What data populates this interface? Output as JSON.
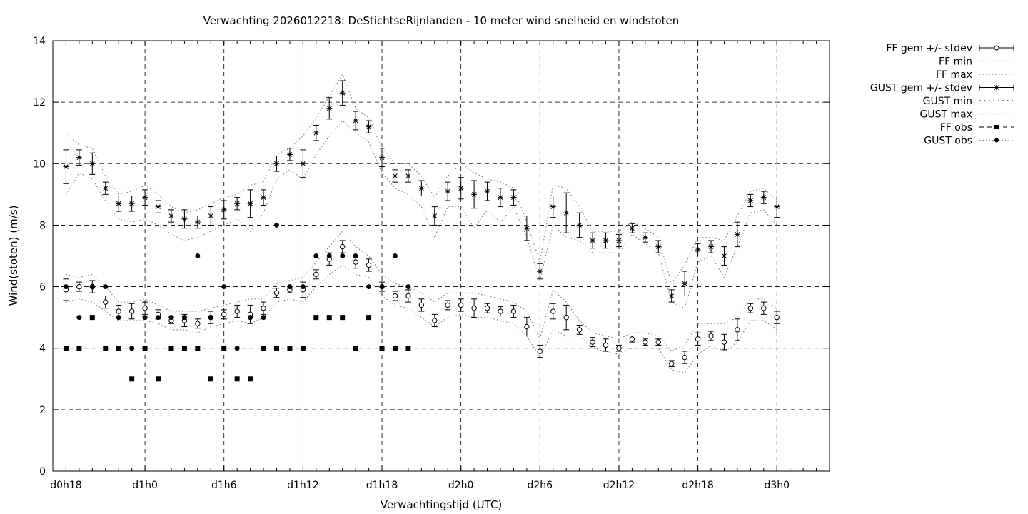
{
  "chart_data": {
    "type": "line",
    "title": "Verwachting 2026012218: DeStichtseRijnlanden - 10 meter wind snelheid en windstoten",
    "xlabel": "Verwachtingstijd (UTC)",
    "ylabel": "Wind(stoten) (m/s)",
    "ylim": [
      0,
      14
    ],
    "yticks": [
      "0",
      "2",
      "4",
      "6",
      "8",
      "10",
      "12",
      "14"
    ],
    "xlim_hours": [
      -1,
      58
    ],
    "xticks": [
      {
        "h": 0,
        "label": "d0h18"
      },
      {
        "h": 6,
        "label": "d1h0"
      },
      {
        "h": 12,
        "label": "d1h6"
      },
      {
        "h": 18,
        "label": "d1h12"
      },
      {
        "h": 24,
        "label": "d1h18"
      },
      {
        "h": 30,
        "label": "d2h0"
      },
      {
        "h": 36,
        "label": "d2h6"
      },
      {
        "h": 42,
        "label": "d2h12"
      },
      {
        "h": 48,
        "label": "d2h18"
      },
      {
        "h": 54,
        "label": "d3h0"
      }
    ],
    "grid": true,
    "legend_position": "outside-right",
    "legend": {
      "ff_gem": "FF gem +/- stdev",
      "ff_min": "FF min",
      "ff_max": "FF max",
      "gust_gem": "GUST gem +/- stdev",
      "gust_min": "GUST min",
      "gust_max": "GUST max",
      "ff_obs": "FF obs",
      "gust_obs": "GUST obs"
    },
    "series": {
      "ff_mean": [
        5.9,
        6.0,
        6.0,
        5.5,
        5.2,
        5.2,
        5.3,
        5.1,
        4.9,
        4.9,
        4.8,
        5.0,
        5.1,
        5.2,
        5.1,
        5.3,
        5.8,
        5.9,
        5.9,
        6.4,
        6.9,
        7.3,
        6.8,
        6.7,
        6.0,
        5.7,
        5.7,
        5.4,
        4.9,
        5.4,
        5.4,
        5.3,
        5.3,
        5.2,
        5.2,
        4.7,
        3.9,
        5.2,
        5.0,
        4.6,
        4.2,
        4.1,
        4.0,
        4.3,
        4.2,
        4.2,
        3.5,
        3.7,
        4.3,
        4.4,
        4.2,
        4.6,
        5.3,
        5.3,
        5.0
      ],
      "ff_stdev": [
        0.35,
        0.15,
        0.2,
        0.2,
        0.2,
        0.25,
        0.2,
        0.15,
        0.1,
        0.2,
        0.15,
        0.2,
        0.15,
        0.2,
        0.3,
        0.2,
        0.15,
        0.1,
        0.25,
        0.15,
        0.2,
        0.2,
        0.2,
        0.2,
        0.15,
        0.15,
        0.2,
        0.2,
        0.2,
        0.15,
        0.2,
        0.3,
        0.15,
        0.15,
        0.2,
        0.3,
        0.2,
        0.25,
        0.4,
        0.15,
        0.15,
        0.2,
        0.1,
        0.1,
        0.1,
        0.1,
        0.1,
        0.2,
        0.2,
        0.15,
        0.25,
        0.35,
        0.15,
        0.2,
        0.2
      ],
      "ff_min": [
        5.5,
        5.6,
        5.5,
        5.2,
        4.9,
        4.9,
        4.9,
        4.8,
        4.6,
        4.6,
        4.5,
        4.7,
        4.8,
        4.9,
        4.8,
        5.0,
        5.5,
        5.6,
        5.5,
        6.0,
        6.4,
        6.7,
        6.4,
        6.3,
        5.7,
        5.4,
        5.3,
        5.0,
        4.7,
        5.0,
        5.1,
        5.0,
        5.0,
        4.9,
        4.8,
        4.4,
        3.7,
        4.6,
        4.4,
        4.4,
        4.0,
        3.9,
        3.8,
        4.0,
        4.0,
        4.0,
        3.3,
        3.2,
        3.8,
        4.1,
        3.9,
        4.2,
        4.9,
        4.9,
        4.6
      ],
      "ff_max": [
        6.4,
        6.3,
        6.4,
        6.0,
        5.5,
        5.5,
        5.6,
        5.4,
        5.2,
        5.2,
        5.2,
        5.3,
        5.4,
        5.5,
        5.6,
        5.6,
        6.1,
        6.2,
        6.3,
        6.8,
        7.3,
        7.8,
        7.3,
        7.0,
        6.4,
        6.1,
        6.0,
        5.8,
        5.5,
        5.8,
        5.8,
        5.8,
        5.7,
        5.6,
        5.5,
        5.2,
        4.3,
        5.9,
        5.5,
        4.9,
        4.5,
        4.4,
        4.3,
        4.5,
        4.5,
        4.4,
        3.9,
        4.1,
        4.8,
        4.8,
        4.8,
        5.0,
        5.6,
        5.6,
        5.3
      ],
      "gust_mean": [
        9.9,
        10.2,
        10.0,
        9.2,
        8.7,
        8.7,
        8.9,
        8.6,
        8.3,
        8.2,
        8.1,
        8.3,
        8.5,
        8.7,
        8.7,
        8.9,
        10.0,
        10.3,
        10.0,
        11.0,
        11.8,
        12.3,
        11.4,
        11.2,
        10.2,
        9.6,
        9.6,
        9.2,
        8.3,
        9.1,
        9.2,
        9.0,
        9.1,
        8.9,
        8.9,
        7.9,
        6.5,
        8.6,
        8.4,
        8.0,
        7.5,
        7.5,
        7.5,
        7.9,
        7.6,
        7.3,
        5.7,
        6.1,
        7.2,
        7.3,
        7.0,
        7.7,
        8.8,
        8.9,
        8.6
      ],
      "gust_stdev": [
        0.55,
        0.25,
        0.35,
        0.2,
        0.25,
        0.25,
        0.25,
        0.2,
        0.2,
        0.3,
        0.2,
        0.3,
        0.3,
        0.2,
        0.45,
        0.25,
        0.25,
        0.2,
        0.45,
        0.25,
        0.35,
        0.4,
        0.3,
        0.2,
        0.3,
        0.2,
        0.2,
        0.25,
        0.3,
        0.3,
        0.35,
        0.45,
        0.3,
        0.3,
        0.25,
        0.4,
        0.25,
        0.35,
        0.65,
        0.4,
        0.25,
        0.25,
        0.2,
        0.15,
        0.15,
        0.2,
        0.2,
        0.4,
        0.2,
        0.2,
        0.3,
        0.4,
        0.2,
        0.2,
        0.35
      ],
      "gust_min": [
        9.0,
        9.7,
        9.5,
        8.8,
        8.2,
        8.1,
        8.2,
        8.0,
        7.7,
        7.5,
        7.6,
        7.8,
        8.0,
        8.2,
        7.8,
        8.4,
        9.5,
        9.8,
        9.5,
        10.3,
        10.9,
        11.4,
        11.0,
        10.7,
        9.7,
        9.2,
        9.0,
        8.6,
        7.6,
        8.6,
        8.6,
        7.9,
        8.5,
        8.1,
        8.6,
        7.6,
        6.2,
        8.0,
        7.6,
        7.5,
        7.1,
        7.1,
        7.1,
        7.7,
        7.4,
        7.1,
        5.5,
        5.3,
        6.8,
        7.0,
        6.3,
        7.3,
        8.4,
        8.5,
        8.0
      ],
      "gust_max": [
        11.0,
        10.6,
        10.5,
        9.6,
        9.0,
        9.1,
        9.3,
        9.0,
        8.6,
        8.4,
        8.5,
        8.7,
        8.9,
        9.0,
        9.3,
        9.4,
        10.3,
        10.5,
        10.9,
        11.5,
        12.2,
        12.9,
        11.8,
        11.5,
        10.5,
        10.0,
        10.0,
        9.6,
        8.9,
        9.6,
        10.0,
        9.7,
        9.5,
        9.4,
        9.2,
        8.1,
        6.8,
        9.3,
        9.2,
        8.6,
        7.8,
        7.8,
        7.8,
        8.1,
        7.9,
        7.6,
        6.1,
        6.7,
        7.6,
        7.6,
        7.5,
        8.3,
        9.1,
        9.2,
        8.8
      ],
      "ff_obs": [
        {
          "h": 0,
          "v": 4
        },
        {
          "h": 1,
          "v": 4
        },
        {
          "h": 2,
          "v": 5
        },
        {
          "h": 3,
          "v": 4
        },
        {
          "h": 4,
          "v": 4
        },
        {
          "h": 5,
          "v": 3
        },
        {
          "h": 6,
          "v": 4
        },
        {
          "h": 7,
          "v": 3
        },
        {
          "h": 8,
          "v": 4
        },
        {
          "h": 9,
          "v": 4
        },
        {
          "h": 10,
          "v": 4
        },
        {
          "h": 11,
          "v": 3
        },
        {
          "h": 12,
          "v": 4
        },
        {
          "h": 13,
          "v": 3
        },
        {
          "h": 14,
          "v": 3
        },
        {
          "h": 15,
          "v": 4
        },
        {
          "h": 16,
          "v": 4
        },
        {
          "h": 17,
          "v": 4
        },
        {
          "h": 18,
          "v": 4
        },
        {
          "h": 19,
          "v": 5
        },
        {
          "h": 20,
          "v": 5
        },
        {
          "h": 21,
          "v": 5
        },
        {
          "h": 22,
          "v": 4
        },
        {
          "h": 23,
          "v": 5
        },
        {
          "h": 24,
          "v": 4
        },
        {
          "h": 25,
          "v": 4
        },
        {
          "h": 26,
          "v": 4
        }
      ],
      "gust_obs": [
        {
          "h": 0,
          "v": 6
        },
        {
          "h": 1,
          "v": 5
        },
        {
          "h": 2,
          "v": 6
        },
        {
          "h": 3,
          "v": 6
        },
        {
          "h": 4,
          "v": 5
        },
        {
          "h": 5,
          "v": 4
        },
        {
          "h": 6,
          "v": 5
        },
        {
          "h": 7,
          "v": 5
        },
        {
          "h": 8,
          "v": 5
        },
        {
          "h": 9,
          "v": 5
        },
        {
          "h": 10,
          "v": 7
        },
        {
          "h": 11,
          "v": 5
        },
        {
          "h": 12,
          "v": 6
        },
        {
          "h": 13,
          "v": 4
        },
        {
          "h": 14,
          "v": 5
        },
        {
          "h": 15,
          "v": 5
        },
        {
          "h": 16,
          "v": 8
        },
        {
          "h": 17,
          "v": 6
        },
        {
          "h": 18,
          "v": 6
        },
        {
          "h": 19,
          "v": 7
        },
        {
          "h": 20,
          "v": 7
        },
        {
          "h": 21,
          "v": 7
        },
        {
          "h": 22,
          "v": 7
        },
        {
          "h": 23,
          "v": 6
        },
        {
          "h": 24,
          "v": 6
        },
        {
          "h": 25,
          "v": 7
        },
        {
          "h": 26,
          "v": 6
        }
      ]
    }
  }
}
